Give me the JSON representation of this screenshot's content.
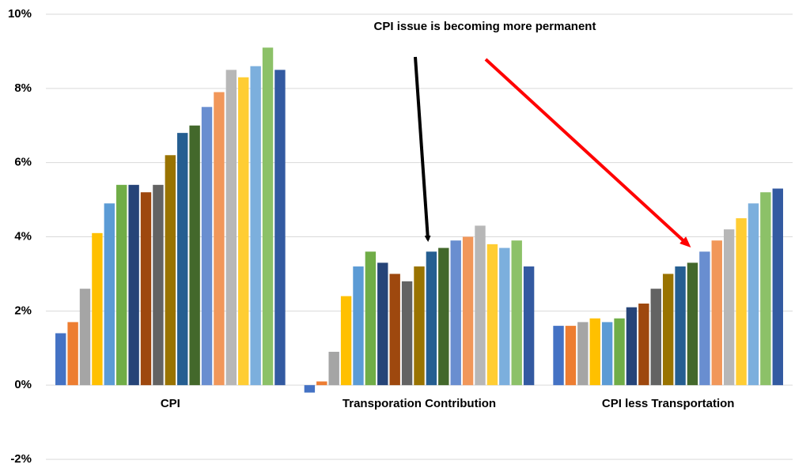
{
  "chart_data": {
    "type": "bar",
    "annotation": "CPI issue is becoming more permanent",
    "categories": [
      "CPI",
      "Transporation Contribution",
      "CPI less Transportation"
    ],
    "series": [
      {
        "color": "#4472c4",
        "values": [
          1.4,
          -0.2,
          1.6
        ]
      },
      {
        "color": "#ed7d31",
        "values": [
          1.7,
          0.1,
          1.6
        ]
      },
      {
        "color": "#a5a5a5",
        "values": [
          2.6,
          0.9,
          1.7
        ]
      },
      {
        "color": "#ffc000",
        "values": [
          4.1,
          2.4,
          1.8
        ]
      },
      {
        "color": "#5b9bd5",
        "values": [
          4.9,
          3.2,
          1.7
        ]
      },
      {
        "color": "#70ad47",
        "values": [
          5.4,
          3.6,
          1.8
        ]
      },
      {
        "color": "#264478",
        "values": [
          5.4,
          3.3,
          2.1
        ]
      },
      {
        "color": "#9e480e",
        "values": [
          5.2,
          3.0,
          2.2
        ]
      },
      {
        "color": "#636363",
        "values": [
          5.4,
          2.8,
          2.6
        ]
      },
      {
        "color": "#997300",
        "values": [
          6.2,
          3.2,
          3.0
        ]
      },
      {
        "color": "#255e91",
        "values": [
          6.8,
          3.6,
          3.2
        ]
      },
      {
        "color": "#43682b",
        "values": [
          7.0,
          3.7,
          3.3
        ]
      },
      {
        "color": "#698ed0",
        "values": [
          7.5,
          3.9,
          3.6
        ]
      },
      {
        "color": "#f1975a",
        "values": [
          7.9,
          4.0,
          3.9
        ]
      },
      {
        "color": "#b7b7b7",
        "values": [
          8.5,
          4.3,
          4.2
        ]
      },
      {
        "color": "#ffcd33",
        "values": [
          8.3,
          3.8,
          4.5
        ]
      },
      {
        "color": "#7cafdd",
        "values": [
          8.6,
          3.7,
          4.9
        ]
      },
      {
        "color": "#8cc168",
        "values": [
          9.1,
          3.9,
          5.2
        ]
      },
      {
        "color": "#335aa1",
        "values": [
          8.5,
          3.2,
          5.3
        ]
      }
    ],
    "ylim": [
      -2,
      10
    ],
    "yticks": [
      {
        "value": -2,
        "label": "-2%"
      },
      {
        "value": 0,
        "label": "0%"
      },
      {
        "value": 2,
        "label": "2%"
      },
      {
        "value": 4,
        "label": "4%"
      },
      {
        "value": 6,
        "label": "6%"
      },
      {
        "value": 8,
        "label": "8%"
      },
      {
        "value": 10,
        "label": "10%"
      }
    ],
    "grid": true
  }
}
